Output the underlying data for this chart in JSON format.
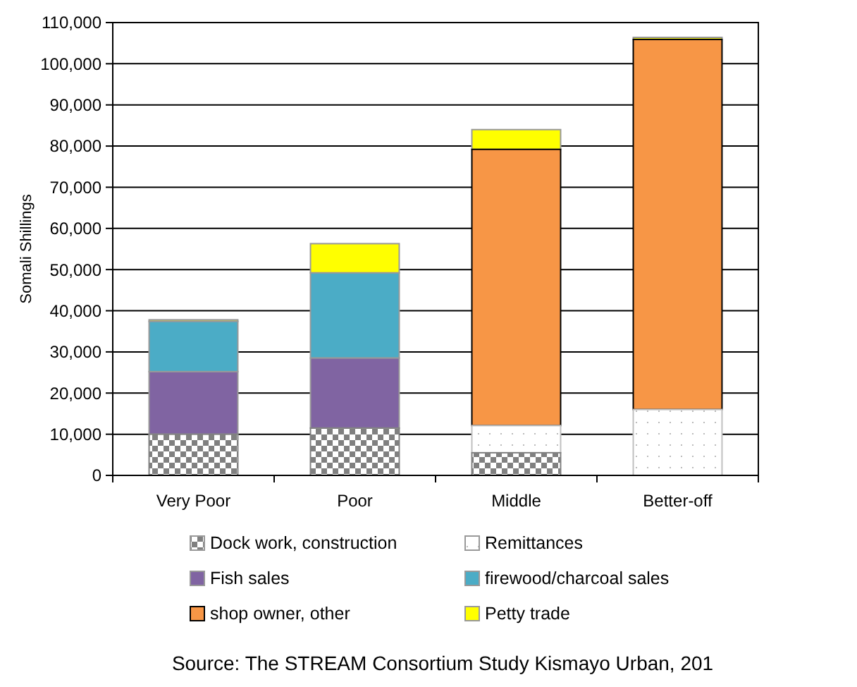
{
  "chart_data": {
    "type": "bar",
    "stacked": true,
    "ylabel": "Somali Shillings",
    "categories": [
      "Very Poor",
      "Poor",
      "Middle",
      "Better-off"
    ],
    "series": [
      {
        "name": "Dock work, construction",
        "color": "#808080",
        "values": [
          10000,
          11500,
          5500,
          0
        ]
      },
      {
        "name": "Remittances",
        "color": "#c0c0c0",
        "values": [
          0,
          0,
          6600,
          16000
        ]
      },
      {
        "name": "Fish sales",
        "color": "#8064a2",
        "values": [
          15200,
          17000,
          0,
          0
        ]
      },
      {
        "name": "firewood/charcoal sales",
        "color": "#4bacc6",
        "values": [
          12200,
          20700,
          0,
          0
        ]
      },
      {
        "name": "shop owner, other",
        "color": "#f79646",
        "values": [
          0,
          0,
          67100,
          89900
        ]
      },
      {
        "name": "Petty trade",
        "color": "#ffff00",
        "values": [
          400,
          7100,
          4800,
          500
        ]
      }
    ],
    "ylim": [
      0,
      110000
    ],
    "yticks": [
      {
        "value": 0,
        "label": "0"
      },
      {
        "value": 10000,
        "label": "10,000"
      },
      {
        "value": 20000,
        "label": "20,000"
      },
      {
        "value": 30000,
        "label": "30,000"
      },
      {
        "value": 40000,
        "label": "40,000"
      },
      {
        "value": 50000,
        "label": "50,000"
      },
      {
        "value": 60000,
        "label": "60,000"
      },
      {
        "value": 70000,
        "label": "70,000"
      },
      {
        "value": 80000,
        "label": "80,000"
      },
      {
        "value": 90000,
        "label": "90,000"
      },
      {
        "value": 100000,
        "label": "100,000"
      },
      {
        "value": 110000,
        "label": "110,000"
      }
    ],
    "grid": "y",
    "legend": "bottom",
    "annotations": [
      "Source: The STREAM Consortium Study  Kismayo Urban, 201"
    ]
  }
}
